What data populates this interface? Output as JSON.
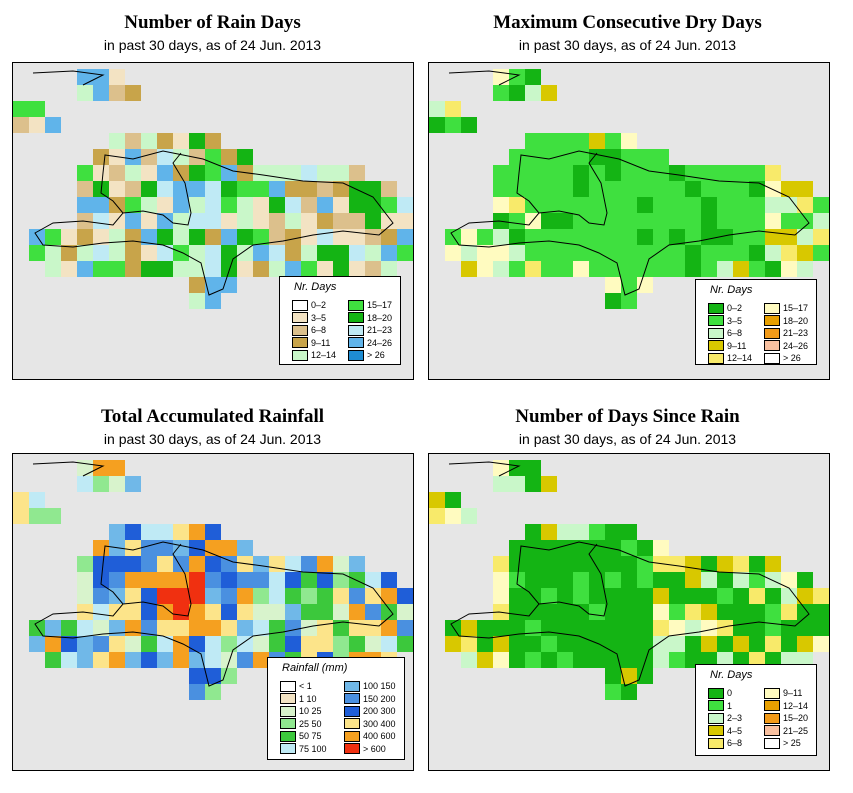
{
  "panels": [
    {
      "id": "rain-days",
      "title": "Number of Rain Days",
      "subtitle": "in past 30 days, as of  24 Jun. 2013",
      "legend": {
        "title": "Nr. Days",
        "items": [
          {
            "label": "0–2",
            "color": "#ffffff"
          },
          {
            "label": "3–5",
            "color": "#f3e3c3"
          },
          {
            "label": "6–8",
            "color": "#dcc08c"
          },
          {
            "label": "9–11",
            "color": "#c8a44a"
          },
          {
            "label": "12–14",
            "color": "#c9f7c9"
          },
          {
            "label": "15–17",
            "color": "#3fe03f"
          },
          {
            "label": "18–20",
            "color": "#14b414"
          },
          {
            "label": "21–23",
            "color": "#bfeaf5"
          },
          {
            "label": "24–26",
            "color": "#60b4ea"
          },
          {
            "label": "> 26",
            "color": "#1e8cd2"
          }
        ]
      }
    },
    {
      "id": "max-dry-days",
      "title": "Maximum Consecutive Dry Days",
      "subtitle": "in past 30 days, as of  24 Jun. 2013",
      "legend": {
        "title": "Nr. Days",
        "items": [
          {
            "label": "0–2",
            "color": "#14b414"
          },
          {
            "label": "3–5",
            "color": "#3fe03f"
          },
          {
            "label": "6–8",
            "color": "#c9f7c9"
          },
          {
            "label": "9–11",
            "color": "#d8c800"
          },
          {
            "label": "12–14",
            "color": "#f8ea6a"
          },
          {
            "label": "15–17",
            "color": "#fffbc0"
          },
          {
            "label": "18–20",
            "color": "#e8a000"
          },
          {
            "label": "21–23",
            "color": "#f29a18"
          },
          {
            "label": "24–26",
            "color": "#f8c0a0"
          },
          {
            "label": "> 26",
            "color": "#ffffff"
          }
        ]
      }
    },
    {
      "id": "total-rainfall",
      "title": "Total Accumulated Rainfall",
      "subtitle": "in past 30 days, as of  24 Jun. 2013",
      "legend": {
        "title": "Rainfall (mm)",
        "items": [
          {
            "label": "< 1",
            "color": "#ffffff"
          },
          {
            "label": "1    10",
            "color": "#f3e3c3"
          },
          {
            "label": "10    25",
            "color": "#d8f3cc"
          },
          {
            "label": "25    50",
            "color": "#90e890"
          },
          {
            "label": "50    75",
            "color": "#3cc83c"
          },
          {
            "label": "75   100",
            "color": "#bfeaf5"
          },
          {
            "label": "100   150",
            "color": "#70b8e8"
          },
          {
            "label": "150   200",
            "color": "#4a90e0"
          },
          {
            "label": "200   300",
            "color": "#1f5ed8"
          },
          {
            "label": "300   400",
            "color": "#fce48a"
          },
          {
            "label": "400   600",
            "color": "#f5a020"
          },
          {
            "label": "> 600",
            "color": "#f03010"
          }
        ]
      }
    },
    {
      "id": "days-since-rain",
      "title": "Number of Days Since Rain",
      "subtitle": "in past 30 days, as of  24 Jun. 2013",
      "legend": {
        "title": "Nr. Days",
        "items": [
          {
            "label": "0",
            "color": "#14b414"
          },
          {
            "label": "1",
            "color": "#3fe03f"
          },
          {
            "label": "2–3",
            "color": "#c9f7c9"
          },
          {
            "label": "4–5",
            "color": "#d8c800"
          },
          {
            "label": "6–8",
            "color": "#f8ea6a"
          },
          {
            "label": "9–11",
            "color": "#fffbc0"
          },
          {
            "label": "12–14",
            "color": "#e8a000"
          },
          {
            "label": "15–20",
            "color": "#f29a18"
          },
          {
            "label": "21–25",
            "color": "#f8c0a0"
          },
          {
            "label": "> 25",
            "color": "#ffffff"
          }
        ]
      }
    }
  ]
}
